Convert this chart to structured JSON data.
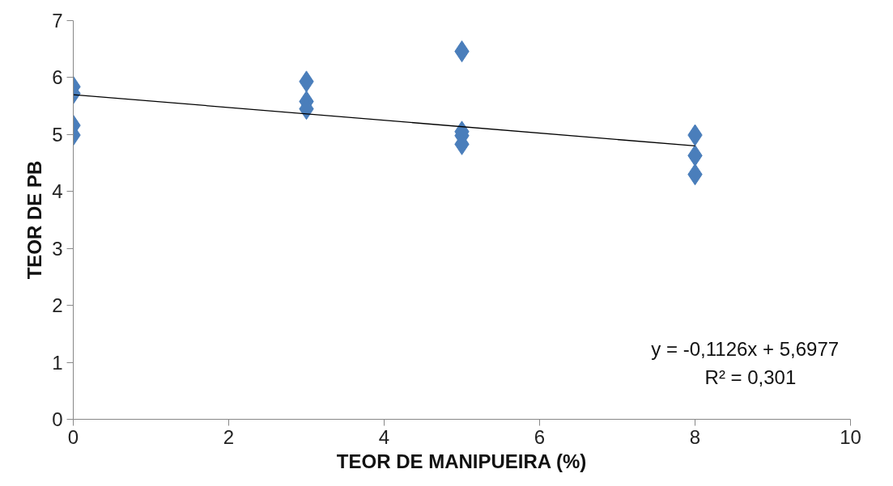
{
  "chart_data": {
    "type": "scatter",
    "xlabel": "TEOR DE MANIPUEIRA (%)",
    "ylabel": "TEOR DE PB",
    "xlim": [
      0,
      10
    ],
    "xticks": [
      0,
      2,
      4,
      6,
      8,
      10
    ],
    "ylim": [
      0,
      7
    ],
    "yticks": [
      0,
      1,
      2,
      3,
      4,
      5,
      6,
      7
    ],
    "grid": false,
    "marker": "diamond",
    "series": [
      {
        "color": "#4a7ebb",
        "x": [
          0,
          0,
          0,
          0,
          3,
          3,
          3,
          5,
          5,
          5,
          5,
          8,
          8,
          8
        ],
        "values": [
          5.84,
          5.72,
          5.16,
          4.99,
          5.93,
          5.58,
          5.45,
          6.46,
          5.05,
          4.98,
          4.83,
          4.99,
          4.63,
          4.3
        ]
      },
      {
        "type": "line",
        "color": "#000000",
        "x": [
          0,
          8
        ],
        "values": [
          5.7,
          4.8
        ],
        "marker": "none"
      }
    ],
    "annotations": [
      "y = -0,1126x + 5,6977",
      "R² = 0,301"
    ]
  }
}
